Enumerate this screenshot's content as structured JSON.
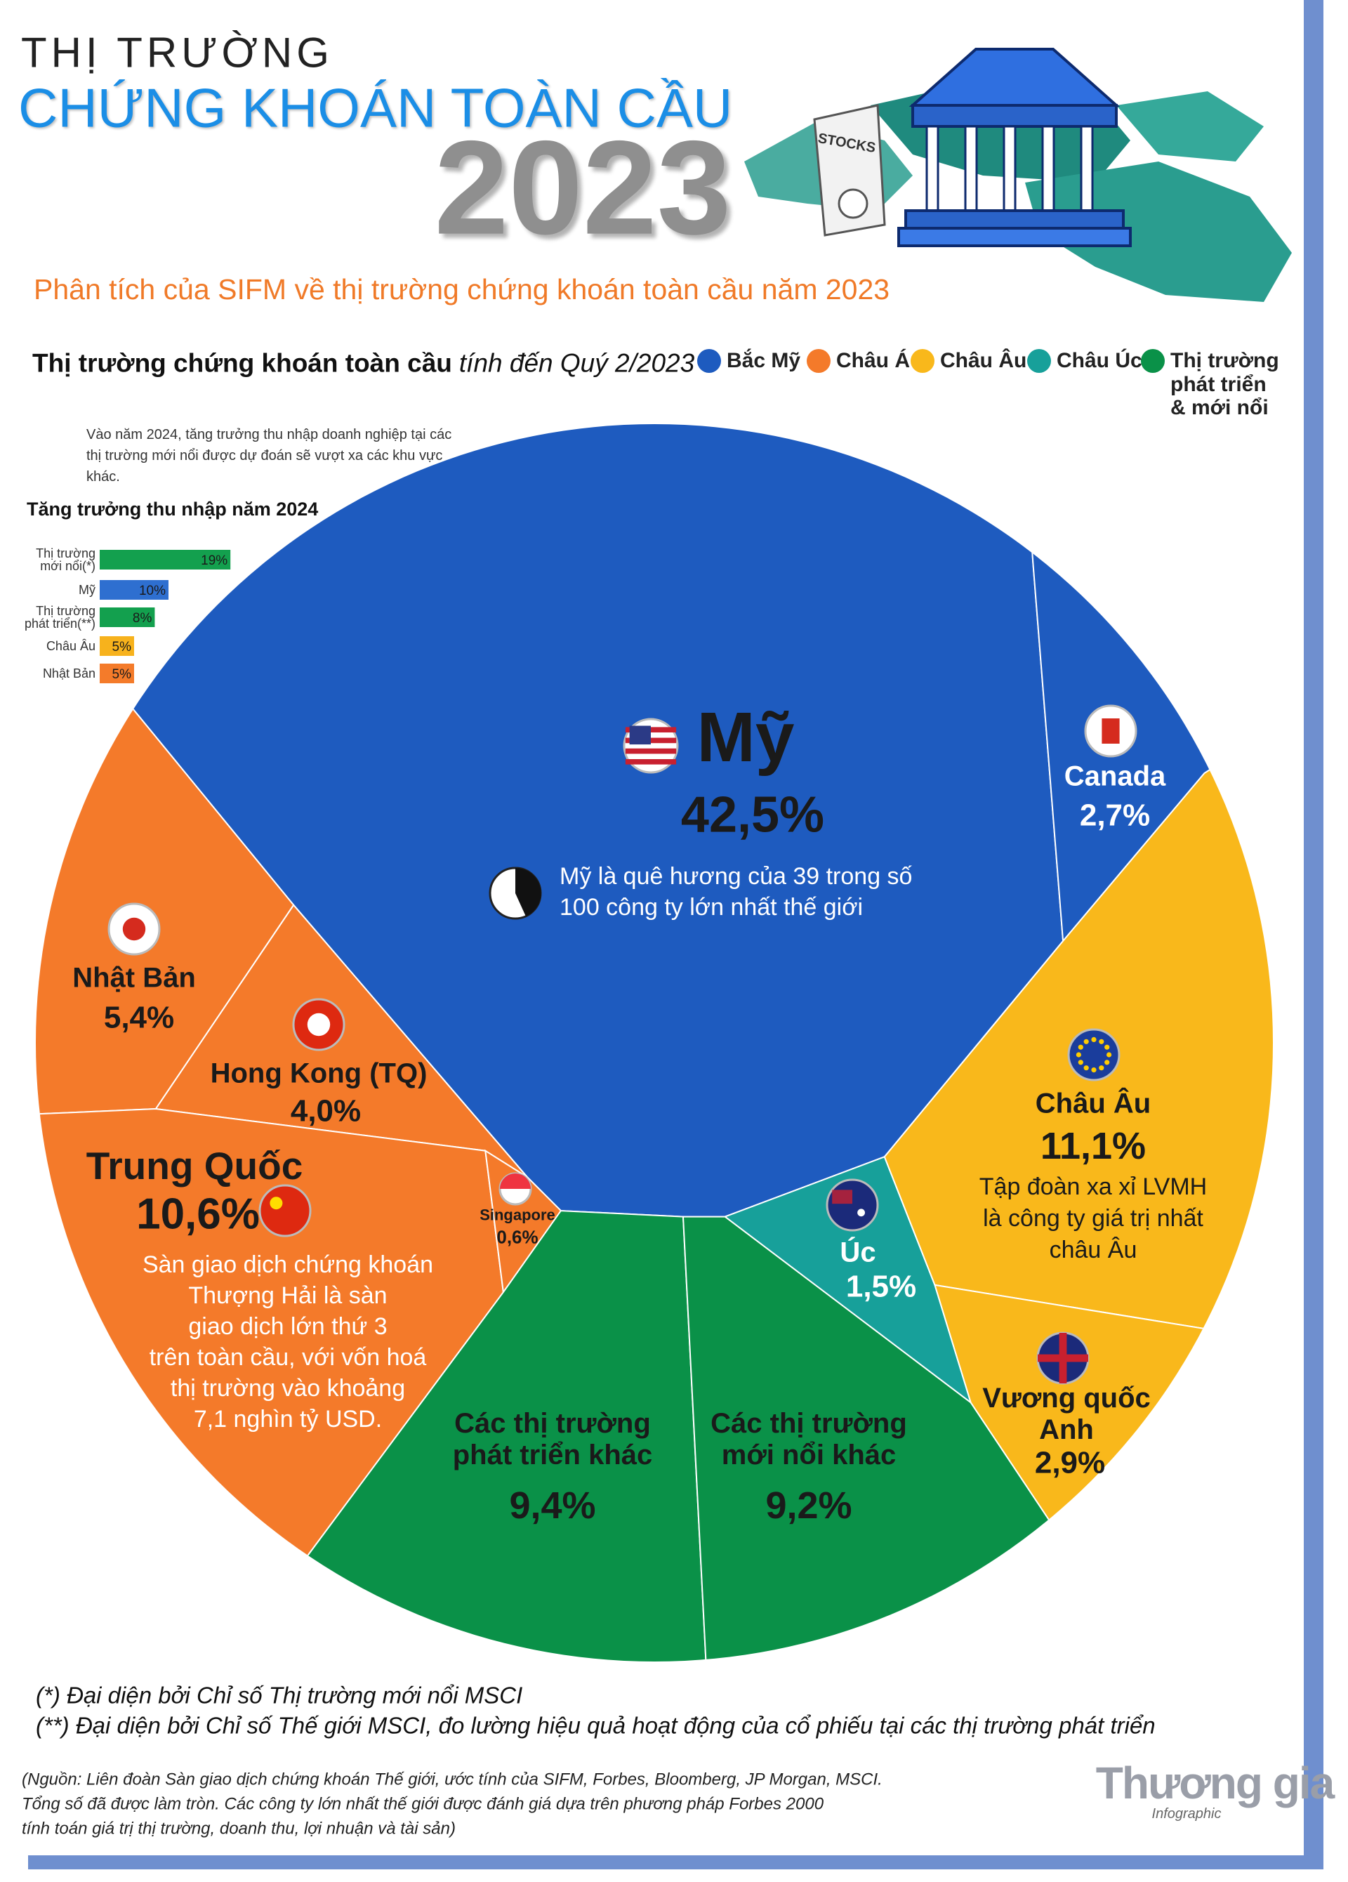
{
  "header": {
    "line1": "THỊ TRƯỜNG",
    "line2": "CHỨNG KHOÁN TOÀN CẦU",
    "year": "2023",
    "subtitle": "Phân tích của SIFM về thị trường chứng khoán toàn cầu năm 2023",
    "illustration_label": "STOCKS"
  },
  "section": {
    "title": "Thị trường chứng khoán toàn cầu",
    "title_italic": "tính đến Quý 2/2023"
  },
  "legend": [
    {
      "label": "Bắc Mỹ",
      "color": "#1e5bbf"
    },
    {
      "label": "Châu Á",
      "color": "#f47a2a"
    },
    {
      "label": "Châu Âu",
      "color": "#f9b81b"
    },
    {
      "label": "Châu Úc",
      "color": "#17a09a"
    },
    {
      "label": "Thị trường phát triển & mới nổi",
      "color": "#0a9148"
    }
  ],
  "chart_data": [
    {
      "type": "bar",
      "note": "Vào năm 2024, tăng trưởng thu nhập doanh nghiệp tại các thị trường mới nổi được dự đoán sẽ vượt xa các khu vực khác.",
      "title": "Tăng trưởng thu nhập năm 2024",
      "categories": [
        "Thị trường mới nổi(*)",
        "Mỹ",
        "Thị trường phát triển(**)",
        "Châu Âu",
        "Nhật Bản"
      ],
      "values": [
        19,
        10,
        8,
        5,
        5
      ],
      "value_labels": [
        "19%",
        "10%",
        "8%",
        "5%",
        "5%"
      ],
      "colors": [
        "#13a04e",
        "#2e6fd0",
        "#13a04e",
        "#f7b21c",
        "#f47b2a"
      ]
    },
    {
      "type": "treemap",
      "categories": [
        "Mỹ",
        "Canada",
        "Nhật Bản",
        "Hong Kong (TQ)",
        "Trung Quốc",
        "Singapore",
        "Các thị trường phát triển khác",
        "Các thị trường mới nổi khác",
        "Úc",
        "Châu Âu",
        "Vương quốc Anh"
      ],
      "values": [
        42.5,
        2.7,
        5.4,
        4.0,
        10.6,
        0.6,
        9.4,
        9.2,
        1.5,
        11.1,
        2.9
      ],
      "value_labels": [
        "42,5%",
        "2,7%",
        "5,4%",
        "4,0%",
        "10,6%",
        "0,6%",
        "9,4%",
        "9,2%",
        "1,5%",
        "11,1%",
        "2,9%"
      ],
      "colors": [
        "#1e5bbf",
        "#1e5bbf",
        "#f47a2a",
        "#f47a2a",
        "#f47a2a",
        "#f47a2a",
        "#0a9148",
        "#0a9148",
        "#17a09a",
        "#f9b81b",
        "#f9b81b"
      ]
    }
  ],
  "annotations": {
    "us": [
      "Mỹ là quê hương của 39 trong số",
      "100 công ty lớn nhất thế giới"
    ],
    "china": [
      "Sàn giao dịch chứng khoán",
      "Thượng Hải là sàn",
      "giao dịch lớn thứ 3",
      "trên toàn cầu, với vốn hoá",
      "thị trường vào khoảng",
      "7,1 nghìn tỷ USD."
    ],
    "europe": [
      "Tập đoàn xa xỉ LVMH",
      "là công ty giá trị nhất",
      "châu Âu"
    ]
  },
  "footnotes": [
    "(*) Đại diện bởi Chỉ số Thị trường mới nổi MSCI",
    "(**) Đại diện bởi Chỉ số Thế giới MSCI, đo lường hiệu quả hoạt động của cổ phiếu tại các thị trường phát triển"
  ],
  "source": [
    "(Nguồn: Liên đoàn Sàn giao dịch chứng khoán Thế giới, ước tính của SIFM, Forbes, Bloomberg, JP Morgan, MSCI.",
    "Tổng số đã được làm tròn. Các công ty lớn nhất thế giới được đánh giá dựa trên phương pháp Forbes 2000",
    "tính toán giá trị thị trường, doanh thu, lợi nhuận và tài sản)"
  ],
  "logo": {
    "name": "Thương gia",
    "tag": "Infographic"
  }
}
